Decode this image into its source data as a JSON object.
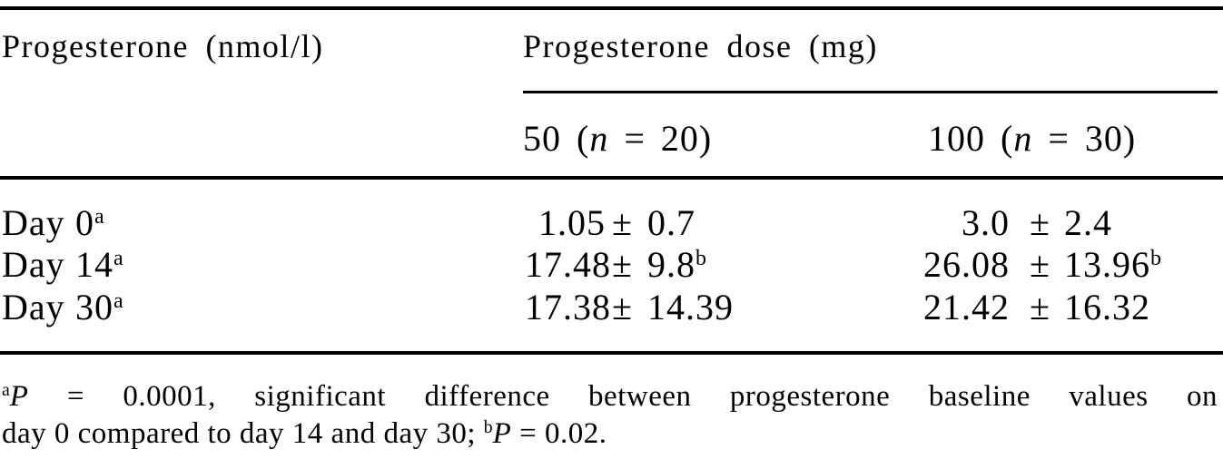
{
  "table": {
    "stub_header": "Progesterone (nmol/l)",
    "span_header": "Progesterone dose (mg)",
    "dose_columns": [
      {
        "pre": "50 (",
        "n": "n",
        "post": " = 20)"
      },
      {
        "pre": "100 (",
        "n": "n",
        "post": " = 30)"
      }
    ],
    "rows": [
      {
        "label_word": "Day",
        "label_num": "0",
        "label_sup": "a",
        "dose50": {
          "mean": "1.05",
          "pm": "±",
          "sd": "0.7",
          "sup": ""
        },
        "dose100": {
          "mean": "3.0",
          "pm": "±",
          "sd": "2.4",
          "sup": ""
        }
      },
      {
        "label_word": "Day",
        "label_num": "14",
        "label_sup": "a",
        "dose50": {
          "mean": "17.48",
          "pm": "±",
          "sd": "9.8",
          "sup": "b"
        },
        "dose100": {
          "mean": "26.08",
          "pm": "±",
          "sd": "13.96",
          "sup": "b"
        }
      },
      {
        "label_word": "Day",
        "label_num": "30",
        "label_sup": "a",
        "dose50": {
          "mean": "17.38",
          "pm": "±",
          "sd": "14.39",
          "sup": ""
        },
        "dose100": {
          "mean": "21.42",
          "pm": "±",
          "sd": "16.32",
          "sup": ""
        }
      }
    ]
  },
  "footnote": {
    "line1": {
      "sup": "a",
      "p": "P",
      "text": " = 0.0001, significant difference between progesterone baseline values on"
    },
    "line2": {
      "text": "day 0 compared to day 14 and day 30; ",
      "sup": "b",
      "p": "P",
      "text2": " = 0.02."
    }
  },
  "chart_data": {
    "type": "table",
    "columns": [
      "Progesterone (nmol/l)",
      "50 (n = 20)",
      "100 (n = 30)"
    ],
    "rows": [
      [
        "Day 0 [a]",
        "1.05 ± 0.7",
        "3.0 ± 2.4"
      ],
      [
        "Day 14 [a]",
        "17.48 ± 9.8 [b]",
        "26.08 ± 13.96 [b]"
      ],
      [
        "Day 30 [a]",
        "17.38 ± 14.39",
        "21.42 ± 16.32"
      ]
    ],
    "footnotes": [
      "a: P = 0.0001, significant difference between progesterone baseline values on day 0 compared to day 14 and day 30",
      "b: P = 0.02"
    ]
  }
}
